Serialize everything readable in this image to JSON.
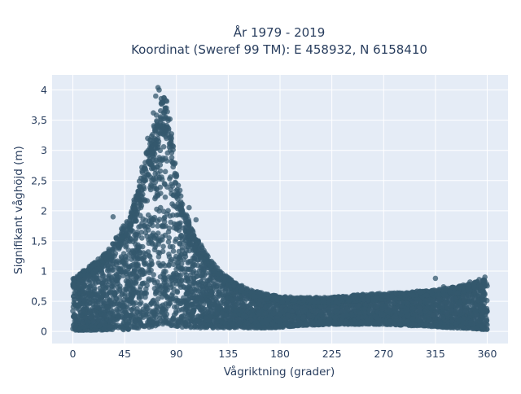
{
  "chart_data": {
    "type": "scatter",
    "title_line1": "År 1979 - 2019",
    "title_line2": "Koordinat (Sweref 99 TM): E 458932, N 6158410",
    "xlabel": "Vågriktning (grader)",
    "ylabel": "Signifikant våghöjd (m)",
    "xlim": [
      -18,
      378
    ],
    "ylim": [
      -0.2,
      4.25
    ],
    "xticks": [
      0,
      45,
      90,
      135,
      180,
      225,
      270,
      315,
      360
    ],
    "xtick_labels": [
      "0",
      "45",
      "90",
      "135",
      "180",
      "225",
      "270",
      "315",
      "360"
    ],
    "yticks": [
      0,
      0.5,
      1,
      1.5,
      2,
      2.5,
      3,
      3.5,
      4
    ],
    "ytick_labels": [
      "0",
      "0,5",
      "1",
      "1,5",
      "2",
      "2,5",
      "3",
      "3,5",
      "4"
    ],
    "grid": true,
    "colors": {
      "marker": "#34586e",
      "plot_bg": "#e5ecf6",
      "grid": "#ffffff",
      "text": "#2a3f5f"
    },
    "envelope": {
      "x": [
        0,
        10,
        20,
        30,
        40,
        45,
        50,
        55,
        60,
        65,
        70,
        75,
        78,
        82,
        85,
        90,
        95,
        100,
        105,
        110,
        115,
        120,
        125,
        130,
        135,
        140,
        150,
        160,
        170,
        180,
        200,
        225,
        250,
        270,
        290,
        315,
        330,
        345,
        360
      ],
      "y_max": [
        0.85,
        1.0,
        1.15,
        1.3,
        1.6,
        1.75,
        1.95,
        2.25,
        2.6,
        3.0,
        3.35,
        3.7,
        3.85,
        3.75,
        3.4,
        2.6,
        2.1,
        1.85,
        1.6,
        1.45,
        1.3,
        1.15,
        1.05,
        0.95,
        0.88,
        0.8,
        0.72,
        0.65,
        0.6,
        0.57,
        0.55,
        0.56,
        0.6,
        0.62,
        0.64,
        0.68,
        0.72,
        0.78,
        0.88
      ],
      "y_min": [
        0.02,
        0.02,
        0.02,
        0.03,
        0.03,
        0.03,
        0.04,
        0.05,
        0.06,
        0.07,
        0.08,
        0.1,
        0.12,
        0.12,
        0.1,
        0.08,
        0.07,
        0.07,
        0.06,
        0.06,
        0.06,
        0.06,
        0.06,
        0.06,
        0.06,
        0.06,
        0.06,
        0.06,
        0.06,
        0.07,
        0.1,
        0.12,
        0.12,
        0.12,
        0.1,
        0.08,
        0.06,
        0.05,
        0.03
      ]
    },
    "outliers": [
      {
        "x": 74,
        "y": 4.04
      },
      {
        "x": 75,
        "y": 4.0
      },
      {
        "x": 72,
        "y": 3.9
      },
      {
        "x": 70,
        "y": 3.62
      },
      {
        "x": 60,
        "y": 2.72
      },
      {
        "x": 65,
        "y": 3.2
      },
      {
        "x": 101,
        "y": 2.05
      },
      {
        "x": 107,
        "y": 1.85
      },
      {
        "x": 35,
        "y": 1.9
      },
      {
        "x": 315,
        "y": 0.88
      },
      {
        "x": 358,
        "y": 0.9
      },
      {
        "x": 353,
        "y": 0.86
      },
      {
        "x": 322,
        "y": 0.74
      },
      {
        "x": 345,
        "y": 0.82
      }
    ]
  }
}
